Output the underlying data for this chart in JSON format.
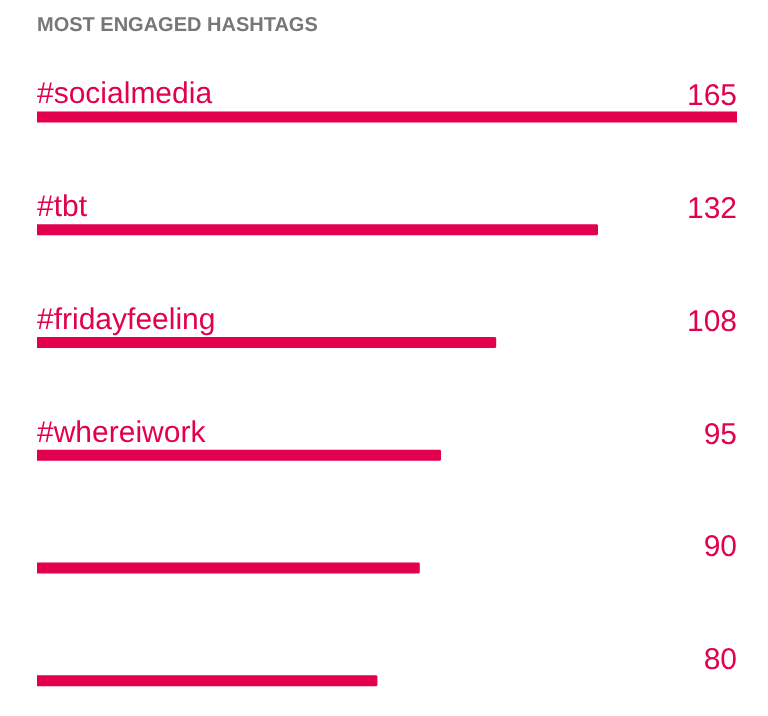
{
  "chart_data": {
    "type": "bar",
    "orientation": "horizontal",
    "title": "MOST ENGAGED HASHTAGS",
    "categories": [
      "#socialmedia",
      "#tbt",
      "#fridayfeeling",
      "#whereiwork",
      null,
      null
    ],
    "values": [
      165,
      132,
      108,
      95,
      90,
      80
    ],
    "color": "#e2004f",
    "xlim": [
      0,
      165
    ],
    "tick_labels": false,
    "grid": false,
    "data_labels": true
  }
}
